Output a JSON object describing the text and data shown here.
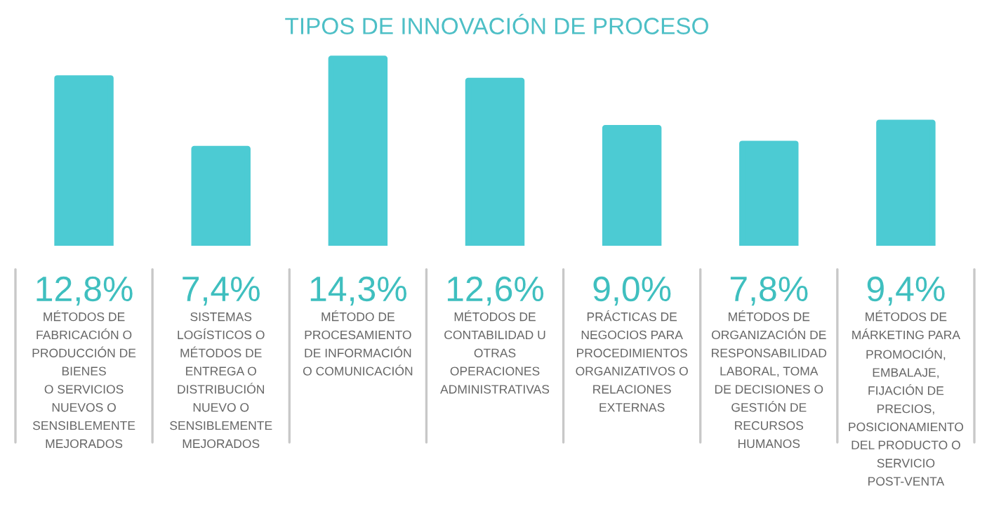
{
  "chart_data": {
    "type": "bar",
    "title": "TIPOS DE INNOVACIÓN DE PROCESO",
    "categories": [
      "MÉTODOS DE\nFABRICACIÓN O\nPRODUCCIÓN DE\nBIENES\nO SERVICIOS\nNUEVOS O\nSENSIBLEMENTE\nMEJORADOS",
      "SISTEMAS\nLOGÍSTICOS O\nMÉTODOS DE\nENTREGA O\nDISTRIBUCIÓN\nNUEVO O\nSENSIBLEMENTE\nMEJORADOS",
      "MÉTODO DE\nPROCESAMIENTO\nDE INFORMACIÓN\nO COMUNICACIÓN",
      "MÉTODOS DE\nCONTABILIDAD U\nOTRAS\nOPERACIONES\nADMINISTRATIVAS",
      "PRÁCTICAS DE\nNEGOCIOS PARA\nPROCEDIMIENTOS\nORGANIZATIVOS O\nRELACIONES\nEXTERNAS",
      "MÉTODOS DE\nORGANIZACIÓN DE\nRESPONSABILIDAD\nLABORAL, TOMA\nDE DECISIONES O\nGESTIÓN DE\nRECURSOS\nHUMANOS",
      "MÉTODOS DE\nMÁRKETING PARA\nPROMOCIÓN,\nEMBALAJE,\nFIJACIÓN DE\nPRECIOS,\nPOSICIONAMIENTO\nDEL PRODUCTO O\nSERVICIO\nPOST-VENTA"
    ],
    "values": [
      12.8,
      7.4,
      14.3,
      12.6,
      9.0,
      7.8,
      9.4
    ],
    "value_labels": [
      "12,8%",
      "7,4%",
      "14,3%",
      "12,6%",
      "9,0%",
      "7,8%",
      "9,4%"
    ],
    "color": "#4ccbd3",
    "grid": false,
    "legend": false
  }
}
